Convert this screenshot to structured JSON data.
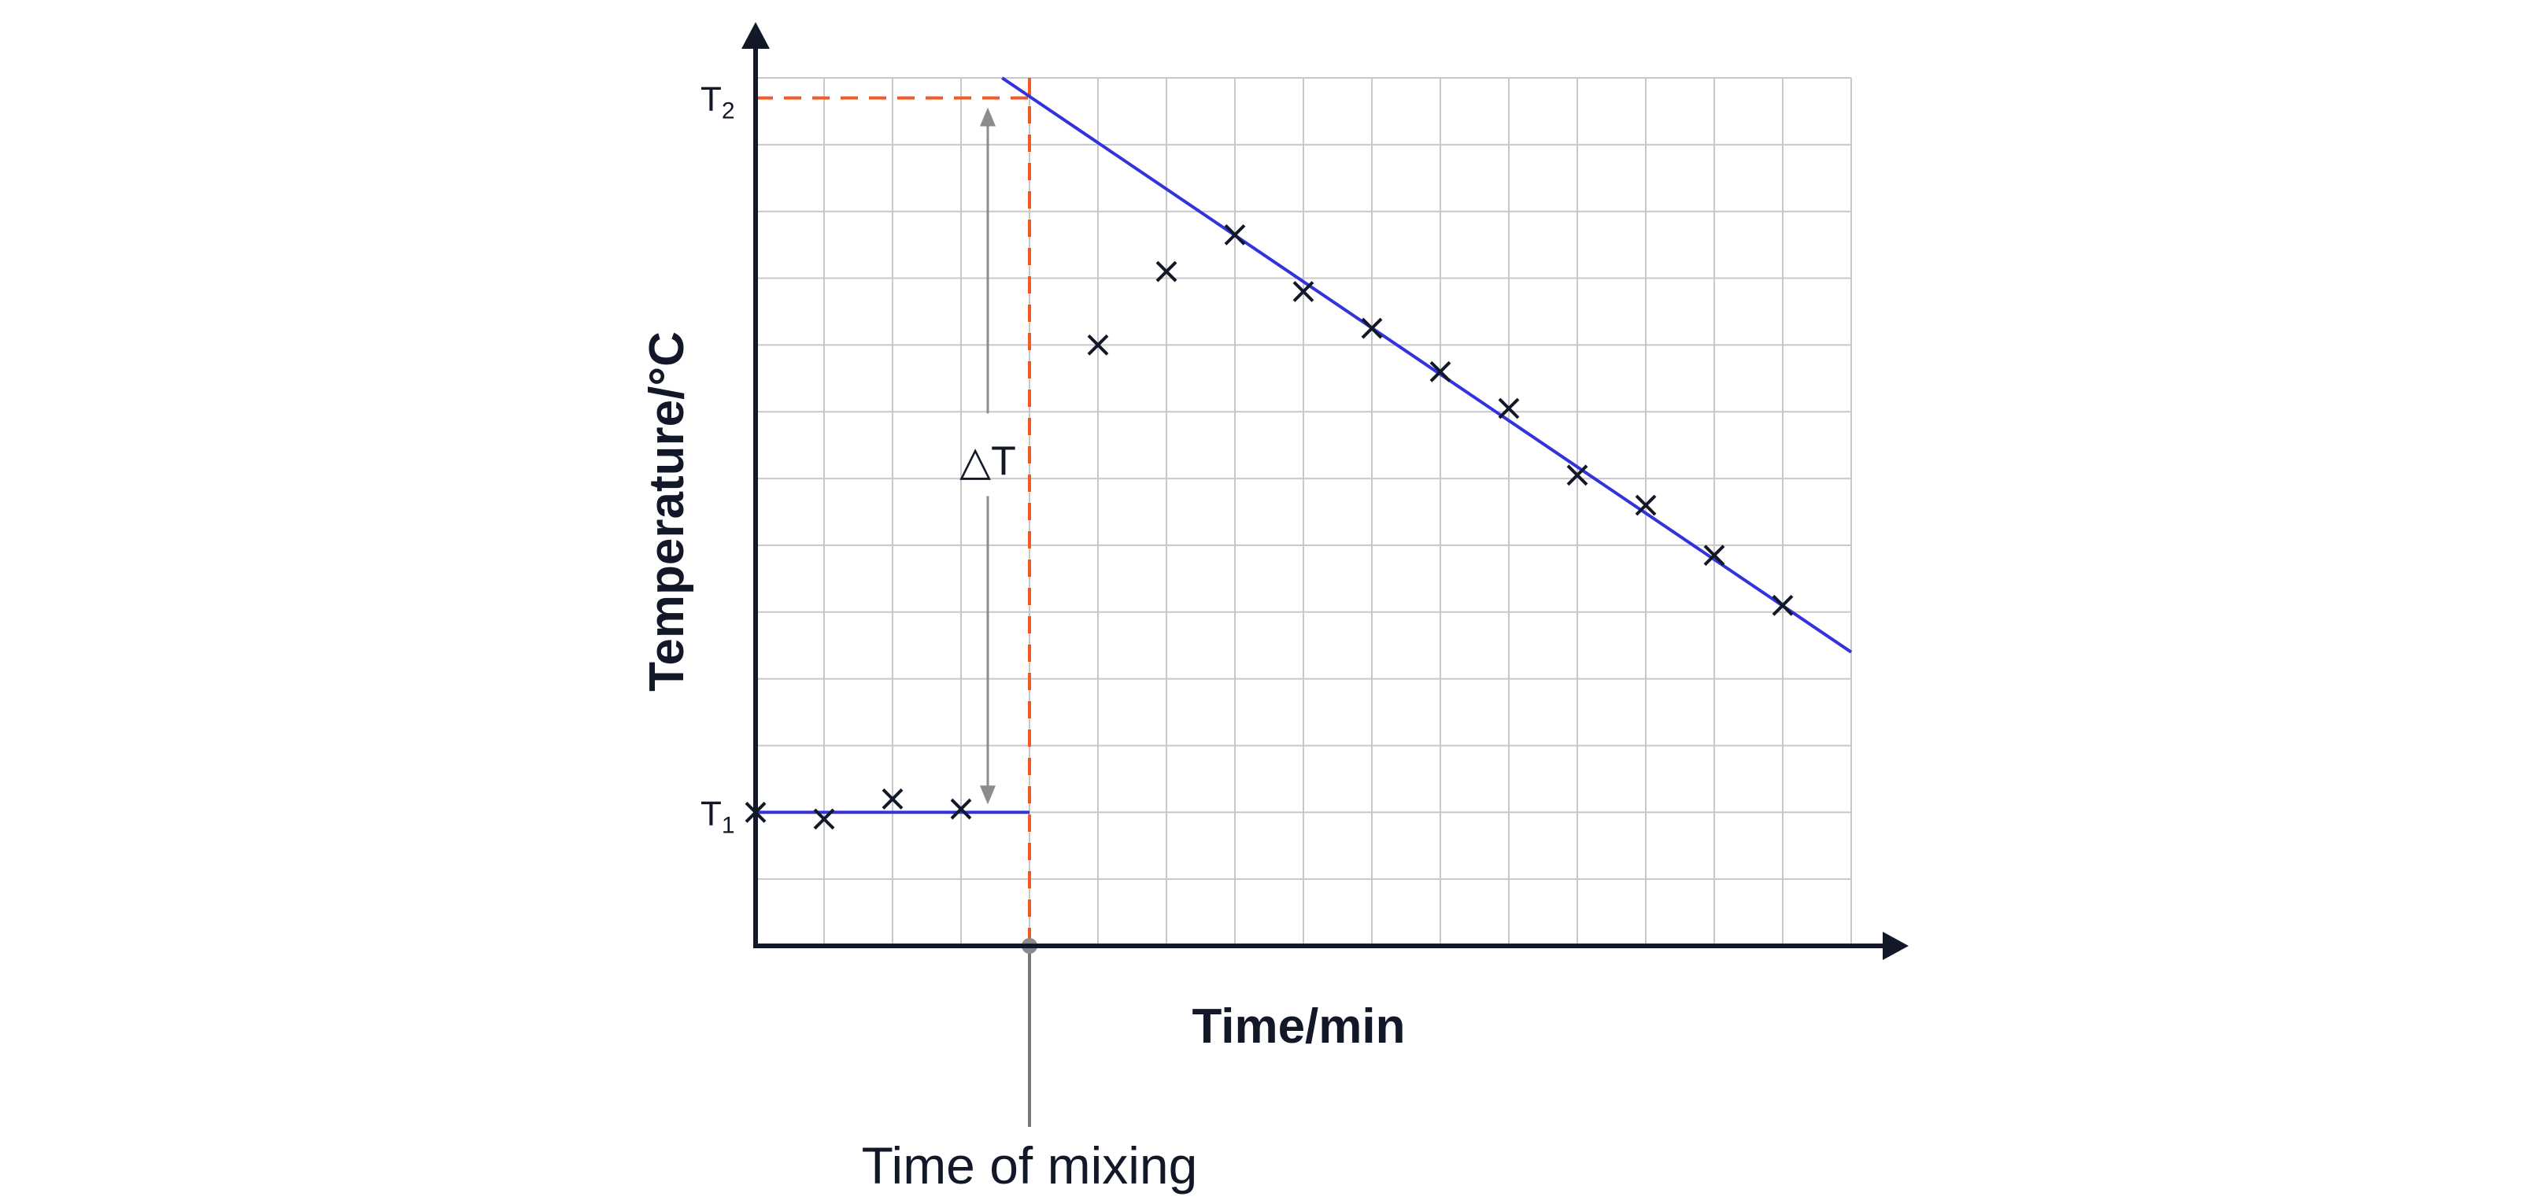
{
  "chart_data": {
    "type": "scatter",
    "xlabel": "Time/min",
    "ylabel": "Temperature/°C",
    "xlim": [
      0,
      16
    ],
    "ylim": [
      0,
      13
    ],
    "grid": true,
    "y_ticks": [
      {
        "main": "T",
        "sub": "1",
        "value": 2.0
      },
      {
        "main": "T",
        "sub": "2",
        "value": 12.7
      }
    ],
    "points": [
      {
        "x": 0,
        "y": 2.0
      },
      {
        "x": 1,
        "y": 1.9
      },
      {
        "x": 2,
        "y": 2.2
      },
      {
        "x": 3,
        "y": 2.05
      },
      {
        "x": 5,
        "y": 9.0
      },
      {
        "x": 6,
        "y": 10.1
      },
      {
        "x": 7,
        "y": 10.65
      },
      {
        "x": 8,
        "y": 9.8
      },
      {
        "x": 9,
        "y": 9.25
      },
      {
        "x": 10,
        "y": 8.6
      },
      {
        "x": 11,
        "y": 8.05
      },
      {
        "x": 12,
        "y": 7.05
      },
      {
        "x": 13,
        "y": 6.6
      },
      {
        "x": 14,
        "y": 5.85
      },
      {
        "x": 15,
        "y": 5.1
      }
    ],
    "baseline": {
      "x": [
        0,
        4
      ],
      "y": [
        2.0,
        2.0
      ]
    },
    "cooling_line": {
      "x": [
        3.6,
        16
      ],
      "y": [
        13.0,
        4.4
      ]
    },
    "mixing_time": 4,
    "mixing_label": "Time of mixing",
    "delta_label": "△T",
    "colors": {
      "axis": "#121828",
      "grid": "#c8c8c8",
      "fit_line": "#3333dd",
      "guide": "#f25a24",
      "arrow": "#8c8c8c",
      "marker": "#121828"
    }
  }
}
